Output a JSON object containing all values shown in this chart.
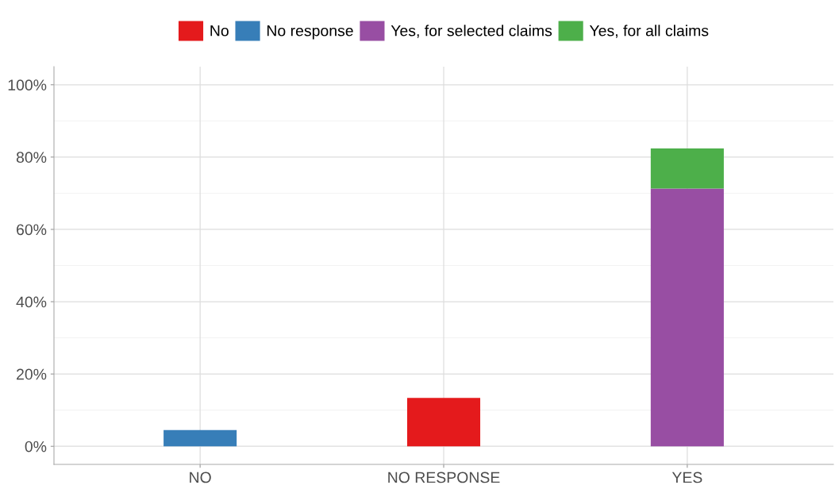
{
  "chart_data": {
    "type": "bar",
    "stacked": true,
    "categories": [
      "NO",
      "NO RESPONSE",
      "YES"
    ],
    "series": [
      {
        "name": "No",
        "color": "#e41a1c",
        "values": [
          0,
          13.4,
          0
        ]
      },
      {
        "name": "No response",
        "color": "#377eb8",
        "values": [
          4.5,
          0,
          0
        ]
      },
      {
        "name": "Yes, for selected claims",
        "color": "#984ea3",
        "values": [
          0,
          0,
          71.3
        ]
      },
      {
        "name": "Yes, for all claims",
        "color": "#4daf4a",
        "values": [
          0,
          0,
          11.1
        ]
      }
    ],
    "ylim": [
      -5,
      105
    ],
    "yticks": [
      {
        "value": 0,
        "label": "0%"
      },
      {
        "value": 20,
        "label": "20%"
      },
      {
        "value": 40,
        "label": "40%"
      },
      {
        "value": 60,
        "label": "60%"
      },
      {
        "value": 80,
        "label": "80%"
      },
      {
        "value": 100,
        "label": "100%"
      }
    ],
    "grid": true,
    "legend": "top"
  }
}
